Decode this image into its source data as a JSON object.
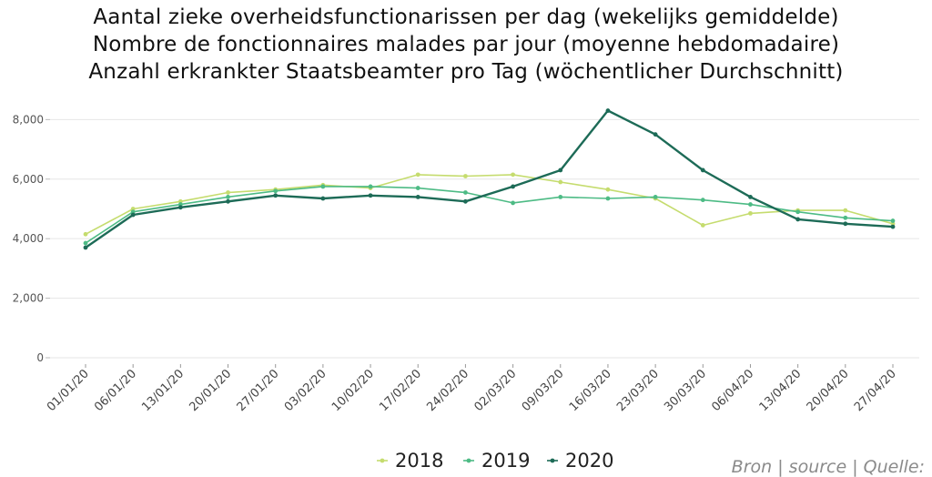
{
  "chart_data": {
    "type": "line",
    "title_lines": [
      "Aantal zieke overheidsfunctionarissen per dag (wekelijks gemiddelde)",
      "Nombre de fonctionnaires malades par jour (moyenne hebdomadaire)",
      "Anzahl erkrankter Staatsbeamter pro Tag (wöchentlicher Durchschnitt)"
    ],
    "categories": [
      "01/01/20",
      "06/01/20",
      "13/01/20",
      "20/01/20",
      "27/01/20",
      "03/02/20",
      "10/02/20",
      "17/02/20",
      "24/02/20",
      "02/03/20",
      "09/03/20",
      "16/03/20",
      "23/03/20",
      "30/03/20",
      "06/04/20",
      "13/04/20",
      "20/04/20",
      "27/04/20"
    ],
    "y_ticks": [
      "0",
      "2,000",
      "4,000",
      "6,000",
      "8,000"
    ],
    "ylim": [
      0,
      8500
    ],
    "grid": true,
    "legend_position": "bottom",
    "series": [
      {
        "name": "2018",
        "color": "#c5dc6e",
        "values": [
          4150,
          5000,
          5250,
          5550,
          5650,
          5800,
          5700,
          6150,
          6100,
          6150,
          5900,
          5650,
          5350,
          4450,
          4850,
          4950,
          4950,
          4500
        ]
      },
      {
        "name": "2019",
        "color": "#4dbb85",
        "values": [
          3850,
          4900,
          5150,
          5400,
          5600,
          5750,
          5750,
          5700,
          5550,
          5200,
          5400,
          5350,
          5400,
          5300,
          5150,
          4900,
          4700,
          4600
        ]
      },
      {
        "name": "2020",
        "color": "#1d6b57",
        "values": [
          3700,
          4800,
          5050,
          5250,
          5450,
          5350,
          5450,
          5400,
          5250,
          5750,
          6300,
          8300,
          7500,
          6300,
          5400,
          4650,
          4500,
          4400
        ]
      }
    ],
    "source_text": "Bron | source | Quelle:"
  }
}
